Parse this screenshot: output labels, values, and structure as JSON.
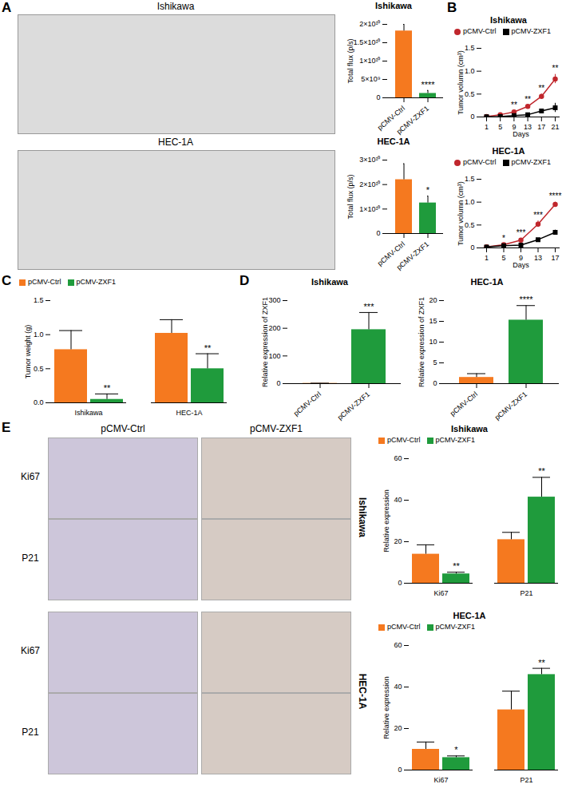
{
  "panels": [
    "A",
    "B",
    "C",
    "D",
    "E"
  ],
  "mouse_images": {
    "labels": [
      "Ishikawa",
      "HEC-1A"
    ]
  },
  "ihc_images": {
    "columns": [
      "pCMV-Ctrl",
      "pCMV-ZXF1"
    ],
    "rows": [
      "Ki67",
      "P21"
    ],
    "groups": [
      "Ishikawa",
      "HEC-1A"
    ]
  },
  "chart_data": [
    {
      "type": "bar",
      "title": "Ishikawa",
      "ylabel": "Total flux (p/s)",
      "categories": [
        "pCMV-Ctrl",
        "pCMV-ZXF1"
      ],
      "values": [
        18200000000,
        1200000000
      ],
      "errors": [
        1800000000,
        800000000
      ],
      "colors": [
        "#f5791f",
        "#1f9b3c"
      ],
      "significance": [
        null,
        "****"
      ],
      "ylim": [
        0,
        20000000000
      ],
      "yticks": [
        0,
        {
          "value": 5000000000,
          "label": "5×10⁹"
        },
        {
          "value": 10000000000,
          "label": "1×10¹⁰"
        },
        {
          "value": 15000000000,
          "label": "1.5×10¹⁰"
        },
        {
          "value": 20000000000,
          "label": "2×10¹⁰"
        }
      ]
    },
    {
      "type": "bar",
      "title": "HEC-1A",
      "ylabel": "Total flux (p/s)",
      "categories": [
        "pCMV-Ctrl",
        "pCMV-ZXF1"
      ],
      "values": [
        22000000000,
        12500000000
      ],
      "errors": [
        6500000000,
        2800000000
      ],
      "colors": [
        "#f5791f",
        "#1f9b3c"
      ],
      "significance": [
        null,
        "*"
      ],
      "ylim": [
        0,
        30000000000
      ],
      "yticks": [
        0,
        {
          "value": 10000000000,
          "label": "1×10¹⁰"
        },
        {
          "value": 20000000000,
          "label": "2×10¹⁰"
        },
        {
          "value": 30000000000,
          "label": "3×10¹⁰"
        }
      ]
    },
    {
      "type": "line",
      "title": "Ishikawa",
      "xlabel": "Days",
      "ylabel": "Tumor volumn (cm³)",
      "legend": "top-left",
      "x": [
        1,
        5,
        9,
        13,
        17,
        21
      ],
      "series": [
        {
          "name": "pCMV-Ctrl",
          "color": "#c0272d",
          "marker": "circle",
          "values": [
            0.01,
            0.05,
            0.11,
            0.23,
            0.45,
            0.83
          ],
          "errors": [
            0.005,
            0.01,
            0.02,
            0.03,
            0.05,
            0.1
          ]
        },
        {
          "name": "pCMV-ZXF1",
          "color": "#000000",
          "marker": "square",
          "values": [
            0.005,
            0.01,
            0.03,
            0.05,
            0.13,
            0.2
          ],
          "errors": [
            0.003,
            0.005,
            0.01,
            0.02,
            0.04,
            0.1
          ]
        }
      ],
      "significance": [
        null,
        null,
        "**",
        "**",
        "**",
        "**"
      ],
      "xlim": [
        1,
        21
      ],
      "xticks": [
        1,
        5,
        9,
        13,
        17,
        21
      ],
      "ylim": [
        0,
        1.5
      ],
      "yticks": [
        0,
        0.5,
        {
          "value": 1,
          "label": "1.0"
        },
        1.5
      ]
    },
    {
      "type": "line",
      "title": "HEC-1A",
      "xlabel": "Days",
      "ylabel": "Tumor volumn (cm³)",
      "legend": "top-left",
      "x": [
        1,
        5,
        9,
        13,
        17
      ],
      "series": [
        {
          "name": "pCMV-Ctrl",
          "color": "#c0272d",
          "marker": "circle",
          "values": [
            0.02,
            0.07,
            0.17,
            0.52,
            0.95
          ],
          "errors": [
            0.005,
            0.01,
            0.03,
            0.07,
            0.05
          ]
        },
        {
          "name": "pCMV-ZXF1",
          "color": "#000000",
          "marker": "square",
          "values": [
            0.02,
            0.05,
            0.06,
            0.18,
            0.34
          ],
          "errors": [
            0.005,
            0.01,
            0.01,
            0.03,
            0.05
          ]
        }
      ],
      "significance": [
        null,
        "*",
        "***",
        "***",
        "****"
      ],
      "xlim": [
        1,
        17
      ],
      "xticks": [
        1,
        5,
        9,
        13,
        17
      ],
      "ylim": [
        0,
        1.5
      ],
      "yticks": [
        0,
        0.5,
        {
          "value": 1,
          "label": "1.0"
        },
        1.5
      ]
    },
    {
      "type": "bar",
      "ylabel": "Tumor weight (g)",
      "legend": "top-left",
      "categories": [
        "Ishikawa",
        "HEC-1A"
      ],
      "series": [
        {
          "name": "pCMV-Ctrl",
          "color": "#f5791f",
          "values": [
            0.78,
            1.02
          ],
          "errors": [
            0.28,
            0.2
          ]
        },
        {
          "name": "pCMV-ZXF1",
          "color": "#1f9b3c",
          "values": [
            0.05,
            0.5
          ],
          "errors": [
            0.08,
            0.22
          ],
          "significance": [
            "**",
            "**"
          ]
        }
      ],
      "ylim": [
        0,
        1.5
      ],
      "yticks": [
        {
          "value": 0,
          "label": "0.0"
        },
        0.5,
        {
          "value": 1,
          "label": "1.0"
        },
        1.5
      ]
    },
    {
      "type": "bar",
      "title": "Ishikawa",
      "ylabel": "Relative expression of ZXF1",
      "categories": [
        "pCMV-Ctrl",
        "pCMV-ZXF1"
      ],
      "values": [
        1,
        195
      ],
      "errors": [
        0.5,
        62
      ],
      "colors": [
        "#f5791f",
        "#1f9b3c"
      ],
      "significance": [
        null,
        "***"
      ],
      "ylim": [
        0,
        300
      ],
      "yticks": [
        0,
        100,
        200,
        300
      ]
    },
    {
      "type": "bar",
      "title": "HEC-1A",
      "ylabel": "Relative expression of ZXF1",
      "categories": [
        "pCMV-Ctrl",
        "pCMV-ZXF1"
      ],
      "values": [
        1.5,
        15.3
      ],
      "errors": [
        0.9,
        3.5
      ],
      "colors": [
        "#f5791f",
        "#1f9b3c"
      ],
      "significance": [
        null,
        "****"
      ],
      "ylim": [
        0,
        20
      ],
      "yticks": [
        0,
        5,
        10,
        15,
        20
      ]
    },
    {
      "type": "bar",
      "title": "Ishikawa",
      "ylabel": "Relative expression",
      "legend": "top-left",
      "categories": [
        "Ki67",
        "P21"
      ],
      "series": [
        {
          "name": "pCMV-Ctrl",
          "color": "#f5791f",
          "values": [
            14,
            21
          ],
          "errors": [
            4.5,
            3.5
          ]
        },
        {
          "name": "pCMV-ZXF1",
          "color": "#1f9b3c",
          "values": [
            4.5,
            41.5
          ],
          "errors": [
            0.8,
            9.5
          ],
          "significance": [
            "**",
            "**"
          ]
        }
      ],
      "ylim": [
        0,
        60
      ],
      "yticks": [
        0,
        20,
        40,
        60
      ]
    },
    {
      "type": "bar",
      "title": "HEC-1A",
      "ylabel": "Relative expression",
      "legend": "top-left",
      "categories": [
        "Ki67",
        "P21"
      ],
      "series": [
        {
          "name": "pCMV-Ctrl",
          "color": "#f5791f",
          "values": [
            10,
            29
          ],
          "errors": [
            3.5,
            9
          ]
        },
        {
          "name": "pCMV-ZXF1",
          "color": "#1f9b3c",
          "values": [
            6,
            46
          ],
          "errors": [
            0.8,
            3
          ],
          "significance": [
            "*",
            "**"
          ]
        }
      ],
      "ylim": [
        0,
        60
      ],
      "yticks": [
        0,
        20,
        40,
        60
      ]
    }
  ]
}
